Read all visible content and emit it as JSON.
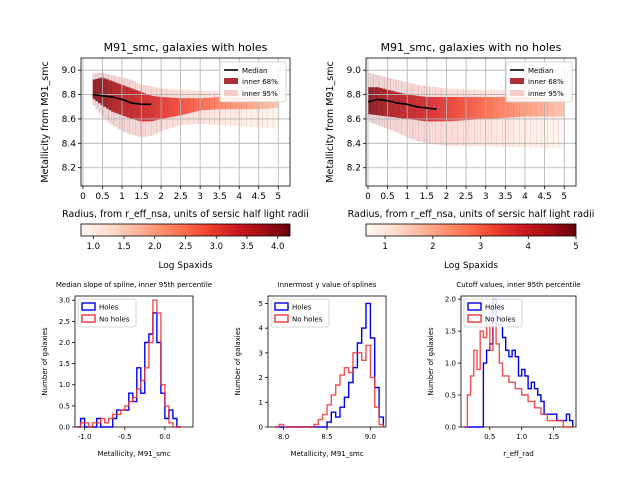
{
  "chart_data": [
    {
      "type": "area",
      "title": "M91_smc, galaxies with holes",
      "xlabel": "Radius, from r_eff_nsa, units of sersic half light radii",
      "ylabel": "Metallicity from M91_smc",
      "xlim": [
        -0.05,
        5.3
      ],
      "ylim": [
        8.05,
        9.1
      ],
      "xticks": [
        "0",
        "0.5",
        "1",
        "1.5",
        "2",
        "2.5",
        "3",
        "3.5",
        "4",
        "4.5",
        "5"
      ],
      "yticks": [
        "8.2",
        "8.4",
        "8.6",
        "8.8",
        "9.0"
      ],
      "grid": true,
      "legend": [
        "Median",
        "inner 68%",
        "inner 95%"
      ],
      "legend_position": "top-right",
      "x": [
        0.25,
        0.5,
        0.75,
        1.0,
        1.25,
        1.5,
        1.75,
        2.0,
        2.5,
        3.0,
        3.5,
        4.0,
        4.5,
        5.0
      ],
      "median": [
        8.8,
        8.79,
        8.78,
        8.76,
        8.73,
        8.72,
        8.72,
        null,
        null,
        null,
        null,
        null,
        null,
        null
      ],
      "inner68_low": [
        8.77,
        8.71,
        8.66,
        8.63,
        8.6,
        8.58,
        8.58,
        8.6,
        8.63,
        8.67,
        8.68,
        8.68,
        8.68,
        8.69
      ],
      "inner68_high": [
        8.92,
        8.94,
        8.91,
        8.88,
        8.85,
        8.82,
        8.79,
        8.78,
        8.77,
        8.77,
        8.78,
        8.78,
        8.78,
        8.78
      ],
      "inner95_low": [
        8.72,
        8.62,
        8.55,
        8.5,
        8.47,
        8.45,
        8.46,
        8.5,
        8.55,
        8.56,
        8.55,
        8.54,
        8.53,
        8.52
      ],
      "inner95_high": [
        8.97,
        8.98,
        8.96,
        8.94,
        8.92,
        8.88,
        8.87,
        8.85,
        8.84,
        8.83,
        8.83,
        8.82,
        8.82,
        8.83
      ],
      "colorbar": {
        "label": "Log Spaxids",
        "range": [
          0.8,
          4.2
        ],
        "ticks": [
          "1.0",
          "1.5",
          "2.0",
          "2.5",
          "3.0",
          "3.5",
          "4.0"
        ]
      }
    },
    {
      "type": "area",
      "title": "M91_smc, galaxies with no holes",
      "xlabel": "Radius, from r_eff_nsa, units of sersic half light radii",
      "ylabel": "Metallicity from M91_smc",
      "xlim": [
        -0.05,
        5.3
      ],
      "ylim": [
        8.05,
        9.1
      ],
      "xticks": [
        "0",
        "0.5",
        "1",
        "1.5",
        "2",
        "2.5",
        "3",
        "3.5",
        "4",
        "4.5",
        "5"
      ],
      "yticks": [
        "8.2",
        "8.4",
        "8.6",
        "8.8",
        "9.0"
      ],
      "grid": true,
      "legend": [
        "Median",
        "inner 68%",
        "inner 95%"
      ],
      "legend_position": "top-right",
      "x": [
        0.0,
        0.25,
        0.5,
        0.75,
        1.0,
        1.25,
        1.5,
        1.75,
        2.0,
        2.5,
        3.0,
        3.5,
        4.0,
        4.5,
        5.0
      ],
      "median": [
        8.74,
        8.76,
        8.75,
        8.73,
        8.72,
        8.7,
        8.69,
        8.68,
        null,
        null,
        null,
        null,
        null,
        null,
        null
      ],
      "inner68_low": [
        8.64,
        8.63,
        8.62,
        8.61,
        8.6,
        8.59,
        8.58,
        8.58,
        8.58,
        8.59,
        8.6,
        8.61,
        8.62,
        8.62,
        8.62
      ],
      "inner68_high": [
        8.86,
        8.86,
        8.84,
        8.82,
        8.8,
        8.79,
        8.78,
        8.78,
        8.78,
        8.78,
        8.78,
        8.78,
        8.78,
        8.77,
        8.77
      ],
      "inner95_low": [
        8.58,
        8.55,
        8.52,
        8.49,
        8.45,
        8.42,
        8.4,
        8.39,
        8.38,
        8.38,
        8.38,
        8.37,
        8.37,
        8.36,
        8.36
      ],
      "inner95_high": [
        8.98,
        8.96,
        8.94,
        8.92,
        8.9,
        8.88,
        8.87,
        8.86,
        8.85,
        8.84,
        8.84,
        8.84,
        8.84,
        8.84,
        8.84
      ],
      "colorbar": {
        "label": "Log Spaxids",
        "range": [
          0.6,
          5.0
        ],
        "ticks": [
          "1",
          "2",
          "3",
          "4",
          "5"
        ]
      }
    },
    {
      "type": "line",
      "title": "Median slope of spline, inner 95th percentile",
      "xlabel": "Metallicity, M91_smc",
      "ylabel": "Number of galaxies",
      "xlim": [
        -1.12,
        0.35
      ],
      "ylim": [
        0,
        3.1
      ],
      "xticks": [
        "-1.0",
        "-0.5",
        "0.0"
      ],
      "yticks": [
        "0.0",
        "0.5",
        "1.0",
        "1.5",
        "2.0",
        "2.5",
        "3.0"
      ],
      "legend": [
        "Holes",
        "No holes"
      ],
      "legend_position": "top-left",
      "bin_edges": [
        -1.1,
        -1.05,
        -1.0,
        -0.95,
        -0.9,
        -0.85,
        -0.8,
        -0.75,
        -0.7,
        -0.65,
        -0.6,
        -0.55,
        -0.5,
        -0.45,
        -0.4,
        -0.35,
        -0.3,
        -0.25,
        -0.2,
        -0.15,
        -0.1,
        -0.05,
        0.0,
        0.05,
        0.1,
        0.15,
        0.2
      ],
      "series": [
        {
          "name": "Holes",
          "color": "#0000ee",
          "counts": [
            0,
            0.2,
            0,
            0,
            0,
            0.2,
            0,
            0,
            0,
            0.2,
            0.4,
            0.4,
            0.4,
            0.8,
            0.6,
            1.4,
            0.8,
            2.0,
            2.2,
            2.7,
            2.0,
            0.8,
            0.2,
            0.4,
            0.2,
            0
          ]
        },
        {
          "name": "No holes",
          "color": "#ee3333",
          "counts": [
            0,
            0.1,
            0.1,
            0,
            0.1,
            0.1,
            0.2,
            0.1,
            0.2,
            0.3,
            0.3,
            0.4,
            0.5,
            0.6,
            0.7,
            0.9,
            1.1,
            1.4,
            2.0,
            3.0,
            2.7,
            1.0,
            0.5,
            0.1,
            0,
            0
          ]
        }
      ]
    },
    {
      "type": "line",
      "title": "Innermost y value of splines",
      "xlabel": "Metallicity, M91_smc",
      "ylabel": "Number of galaxies",
      "xlim": [
        7.82,
        9.18
      ],
      "ylim": [
        0,
        5.3
      ],
      "xticks": [
        "8.0",
        "8.5",
        "9.0"
      ],
      "yticks": [
        "0",
        "1",
        "2",
        "3",
        "4",
        "5"
      ],
      "legend": [
        "Holes",
        "No holes"
      ],
      "legend_position": "top-left",
      "bin_edges": [
        7.9,
        7.95,
        8.0,
        8.05,
        8.1,
        8.15,
        8.2,
        8.25,
        8.3,
        8.35,
        8.4,
        8.45,
        8.5,
        8.55,
        8.6,
        8.65,
        8.7,
        8.75,
        8.8,
        8.85,
        8.9,
        8.95,
        9.0,
        9.05,
        9.1,
        9.15
      ],
      "series": [
        {
          "name": "Holes",
          "color": "#0000ee",
          "counts": [
            0,
            0,
            0,
            0,
            0,
            0,
            0,
            0,
            0,
            0,
            0,
            0,
            0.2,
            0.6,
            0.4,
            0.8,
            1.2,
            1.8,
            2.4,
            3.4,
            4.0,
            5.0,
            3.6,
            1.6,
            0.4
          ]
        },
        {
          "name": "No holes",
          "color": "#ee3333",
          "counts": [
            0,
            0.1,
            0,
            0,
            0,
            0,
            0,
            0,
            0,
            0.1,
            0.3,
            0.5,
            0.9,
            1.3,
            1.7,
            2.1,
            2.4,
            2.2,
            3.0,
            3.0,
            2.7,
            3.3,
            2.0,
            0.8,
            0.1
          ]
        }
      ]
    },
    {
      "type": "line",
      "title": "Cutoff values, inner 95th percentile",
      "xlabel": "r_eff_rad",
      "ylabel": "Number of galaxies",
      "xlim": [
        0.05,
        1.85
      ],
      "ylim": [
        0,
        2.05
      ],
      "xticks": [
        "0.5",
        "1.0",
        "1.5"
      ],
      "yticks": [
        "0.0",
        "0.5",
        "1.0",
        "1.5",
        "2.0"
      ],
      "legend": [
        "Holes",
        "No holes"
      ],
      "legend_position": "top-left",
      "bin_edges": [
        0.1,
        0.15,
        0.2,
        0.25,
        0.3,
        0.35,
        0.4,
        0.45,
        0.5,
        0.55,
        0.6,
        0.65,
        0.7,
        0.75,
        0.8,
        0.85,
        0.9,
        0.95,
        1.0,
        1.05,
        1.1,
        1.15,
        1.2,
        1.25,
        1.3,
        1.35,
        1.4,
        1.45,
        1.5,
        1.55,
        1.6,
        1.65,
        1.7,
        1.75,
        1.8
      ],
      "series": [
        {
          "name": "Holes",
          "color": "#0000ee",
          "counts": [
            0,
            0,
            0,
            0,
            0,
            0,
            1.0,
            1.2,
            1.3,
            2.0,
            1.6,
            1.6,
            1.4,
            1.2,
            1.1,
            1.2,
            1.1,
            0.8,
            0.9,
            0.8,
            0.6,
            0.7,
            0.6,
            0.5,
            0.4,
            0.2,
            0.2,
            0.2,
            0.2,
            0.1,
            0.1,
            0.1,
            0.2,
            0.1
          ]
        },
        {
          "name": "No holes",
          "color": "#ee3333",
          "counts": [
            0,
            0.5,
            0.8,
            1.2,
            0.9,
            1.5,
            1.4,
            1.6,
            1.2,
            1.6,
            1.3,
            1.0,
            0.8,
            0.8,
            0.7,
            0.7,
            0.6,
            0.6,
            0.5,
            0.5,
            0.4,
            0.4,
            0.3,
            0.3,
            0.2,
            0.2,
            0.1,
            0.1,
            0.1,
            0.1,
            0.1,
            0,
            0,
            0
          ]
        }
      ]
    }
  ]
}
